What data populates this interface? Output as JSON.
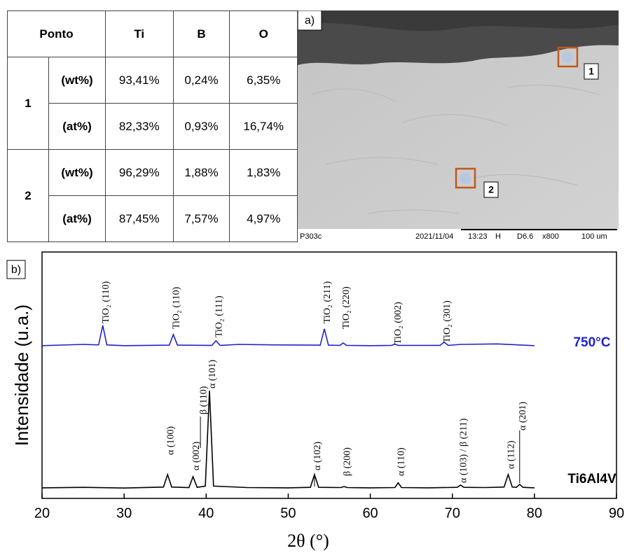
{
  "table": {
    "header": [
      "Ponto",
      "Ti",
      "B",
      "O"
    ],
    "rows": [
      {
        "point": "1",
        "unit": "(wt%)",
        "values": [
          "93,41%",
          "0,24%",
          "6,35%"
        ]
      },
      {
        "point": "1",
        "unit": "(at%)",
        "values": [
          "82,33%",
          "0,93%",
          "16,74%"
        ]
      },
      {
        "point": "2",
        "unit": "(wt%)",
        "values": [
          "96,29%",
          "1,88%",
          "1,83%"
        ]
      },
      {
        "point": "2",
        "unit": "(at%)",
        "values": [
          "87,45%",
          "7,57%",
          "4,97%"
        ]
      }
    ]
  },
  "image": {
    "panel_label": "a)",
    "markers": [
      "1",
      "2"
    ],
    "caption": {
      "sample": "P303c",
      "date": "2021/11/04",
      "time": "13:23",
      "mode": "H",
      "distance": "D6.6",
      "magnification": "x800",
      "scale": "100 um"
    }
  },
  "chart_data": {
    "type": "line",
    "panel_label": "b)",
    "xlabel": "2θ (°)",
    "ylabel": "Intensidade (u.a.)",
    "xlim": [
      20,
      90
    ],
    "xticks": [
      20,
      30,
      40,
      50,
      60,
      70,
      80,
      90
    ],
    "ylim": [
      0,
      100
    ],
    "series": [
      {
        "name": "750°C",
        "color": "#2323c8",
        "x": [
          20,
          25,
          26.9,
          27.4,
          27.9,
          30,
          35.5,
          36,
          36.5,
          40.7,
          41.2,
          41.7,
          44,
          48,
          53.9,
          54.4,
          54.9,
          56.3,
          56.7,
          57.1,
          60,
          62.6,
          63,
          63.4,
          68.5,
          69,
          69.5,
          71,
          75.5,
          80
        ],
        "values": [
          62,
          62.5,
          62.3,
          70.2,
          62.3,
          62,
          62.2,
          66.5,
          62.2,
          62.1,
          64,
          62.1,
          62.5,
          62.3,
          62.2,
          68.8,
          62.2,
          62.1,
          63.1,
          62.1,
          62,
          62.1,
          62.6,
          62.1,
          62.1,
          63.4,
          62.1,
          62.5,
          62.7,
          62
        ]
      },
      {
        "name": "Ti6Al4V",
        "color": "#000000",
        "x": [
          20,
          25,
          30,
          34.8,
          35.3,
          35.8,
          37.9,
          38.4,
          38.9,
          39.9,
          40.4,
          40.9,
          45,
          50,
          52.7,
          53.2,
          53.7,
          56.4,
          56.8,
          57.2,
          60,
          63.0,
          63.4,
          63.8,
          67,
          70.6,
          71,
          71.4,
          74,
          76.3,
          76.8,
          77.3,
          77.8,
          78.2,
          78.6,
          80
        ],
        "values": [
          4.3,
          4.5,
          4.2,
          4.6,
          9.7,
          4.6,
          4.4,
          8.8,
          4.5,
          5,
          43.7,
          5,
          4.4,
          4.3,
          4.5,
          9.7,
          4.5,
          4.4,
          4.8,
          4.4,
          4.3,
          4.4,
          6.3,
          4.4,
          4.3,
          4.5,
          5.4,
          4.5,
          4.4,
          4.6,
          9.7,
          4.6,
          4.5,
          5.7,
          4.5,
          4.3
        ]
      }
    ],
    "annotations": [
      {
        "text": "TiO₂ (110)",
        "x": 27.4
      },
      {
        "text": "TiO₂ (110)",
        "x": 36
      },
      {
        "text": "TiO₂ (111)",
        "x": 41.2
      },
      {
        "text": "TiO₂ (211)",
        "x": 54.4
      },
      {
        "text": "TiO₂ (220)",
        "x": 56.7
      },
      {
        "text": "TiO₂ (002)",
        "x": 63
      },
      {
        "text": "TiO₂ (301)",
        "x": 69
      },
      {
        "text": "α (100)",
        "x": 35.3
      },
      {
        "text": "α (002)",
        "x": 38.4
      },
      {
        "text": "β (110)",
        "x": 39.3
      },
      {
        "text": "α (101)",
        "x": 40.4
      },
      {
        "text": "α (102)",
        "x": 53.2
      },
      {
        "text": "β (200)",
        "x": 56.8
      },
      {
        "text": "α (110)",
        "x": 63.4
      },
      {
        "text": "α (103) / β (211)",
        "x": 71
      },
      {
        "text": "α (112)",
        "x": 76.8
      },
      {
        "text": "α (201)",
        "x": 78.2
      }
    ]
  }
}
